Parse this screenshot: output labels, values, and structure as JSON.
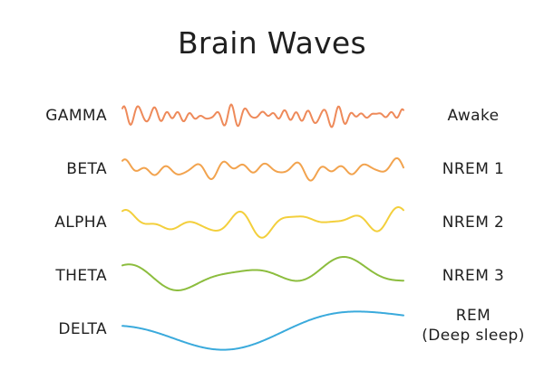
{
  "title": "Brain Waves",
  "waves": [
    {
      "band": "GAMMA",
      "stage": "Awake",
      "color": "#ee8a5a",
      "amplitude": 9,
      "components": [
        [
          0.43,
          1,
          0.2
        ],
        [
          0.37,
          0.9,
          1.1
        ],
        [
          0.31,
          0.7,
          2.4
        ],
        [
          0.53,
          0.6,
          0.7
        ],
        [
          0.047,
          0.35,
          0.5
        ]
      ]
    },
    {
      "band": "BETA",
      "stage": "NREM 1",
      "color": "#f2a34e",
      "amplitude": 9,
      "components": [
        [
          0.17,
          1,
          0.3
        ],
        [
          0.23,
          0.8,
          1.7
        ],
        [
          0.29,
          0.6,
          0.9
        ],
        [
          0.041,
          0.5,
          2.2
        ],
        [
          0.11,
          0.4,
          0.4
        ]
      ]
    },
    {
      "band": "ALPHA",
      "stage": "NREM 2",
      "color": "#f3cf3c",
      "amplitude": 13,
      "components": [
        [
          0.105,
          1,
          0.6
        ],
        [
          0.143,
          0.6,
          1.9
        ],
        [
          0.067,
          0.5,
          0.3
        ],
        [
          0.021,
          0.45,
          2.7
        ],
        [
          0.19,
          0.25,
          1.2
        ]
      ]
    },
    {
      "band": "THETA",
      "stage": "NREM 3",
      "color": "#8cbd3e",
      "amplitude": 16,
      "components": [
        [
          0.052,
          1,
          1.2
        ],
        [
          0.018,
          0.9,
          3.4
        ],
        [
          0.083,
          0.35,
          0.5
        ],
        [
          0.009,
          0.4,
          1.0
        ]
      ]
    },
    {
      "band": "DELTA",
      "stage": "REM",
      "stage_sub": "(Deep sleep)",
      "color": "#3aaadc",
      "amplitude": 17,
      "components": [
        [
          0.021,
          1,
          2.1
        ],
        [
          0.011,
          0.85,
          4.4
        ],
        [
          0.034,
          0.35,
          0.8
        ]
      ]
    }
  ]
}
